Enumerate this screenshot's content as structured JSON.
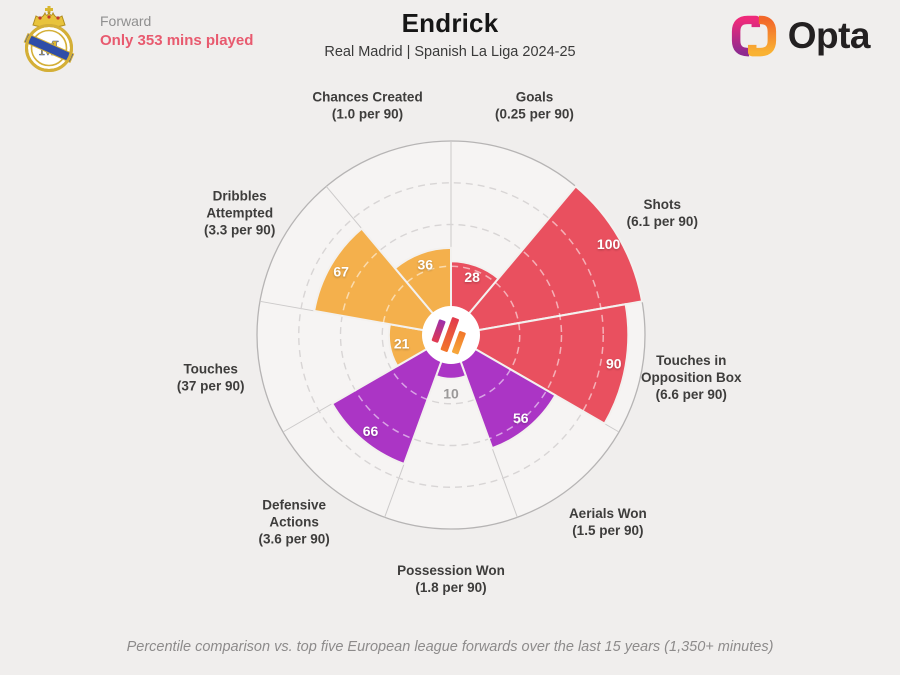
{
  "header": {
    "club_position": "Forward",
    "minutes_note": "Only 353 mins played",
    "player_name": "Endrick",
    "subtitle": "Real Madrid | Spanish La Liga 2024-25",
    "brand_name": "Opta"
  },
  "footer": {
    "caption": "Percentile comparison vs. top five European league forwards over the last 15 years (1,350+ minutes)"
  },
  "colors": {
    "attacking": "#e9505f",
    "possession": "#f4b04c",
    "defending": "#ab35c5",
    "page_bg": "#f0eeed",
    "chart_bg": "#f6f4f3",
    "outer_ring": "#b6b4b4",
    "spoke": "#cccaca",
    "grid_dash": "#d8d5d5",
    "grid_on_slice": "rgba(255,255,255,0.55)",
    "slice_edge": "#f3f1ef",
    "category_label": "#3e3d3c",
    "value_label_inside": "#ffffff",
    "value_label_outside": "#9b9999",
    "minutes_note_color": "#e85a6f"
  },
  "chart_data": {
    "type": "pie",
    "variant": "pizza-percentile",
    "title": "Endrick",
    "subtitle": "Real Madrid | Spanish La Liga 2024-25",
    "max": 100,
    "gridlines_pct": [
      25,
      50,
      75
    ],
    "slice_angle_deg": 40,
    "start": "top, clockwise",
    "legend_position": "none",
    "categories": [
      {
        "name": "Goals",
        "per90": "0.25 per 90",
        "value": 28,
        "group": "attacking",
        "label_lines": [
          "Goals",
          "(0.25 per 90)"
        ]
      },
      {
        "name": "Shots",
        "per90": "6.1 per 90",
        "value": 100,
        "group": "attacking",
        "label_lines": [
          "Shots",
          "(6.1 per 90)"
        ]
      },
      {
        "name": "Touches in Opposition Box",
        "per90": "6.6 per 90",
        "value": 90,
        "group": "attacking",
        "label_lines": [
          "Touches in",
          "Opposition Box",
          "(6.6 per 90)"
        ]
      },
      {
        "name": "Aerials Won",
        "per90": "1.5 per 90",
        "value": 56,
        "group": "defending",
        "label_lines": [
          "Aerials Won",
          "(1.5 per 90)"
        ]
      },
      {
        "name": "Possession Won",
        "per90": "1.8 per 90",
        "value": 10,
        "group": "defending",
        "label_lines": [
          "Possession Won",
          "(1.8 per 90)"
        ]
      },
      {
        "name": "Defensive Actions",
        "per90": "3.6 per 90",
        "value": 66,
        "group": "defending",
        "label_lines": [
          "Defensive",
          "Actions",
          "(3.6 per 90)"
        ]
      },
      {
        "name": "Touches",
        "per90": "37 per 90",
        "value": 21,
        "group": "possession",
        "label_lines": [
          "Touches",
          "(37 per 90)"
        ]
      },
      {
        "name": "Dribbles Attempted",
        "per90": "3.3 per 90",
        "value": 67,
        "group": "possession",
        "label_lines": [
          "Dribbles",
          "Attempted",
          "(3.3 per 90)"
        ]
      },
      {
        "name": "Chances Created",
        "per90": "1.0 per 90",
        "value": 36,
        "group": "possession",
        "label_lines": [
          "Chances Created",
          "(1.0 per 90)"
        ]
      }
    ]
  }
}
